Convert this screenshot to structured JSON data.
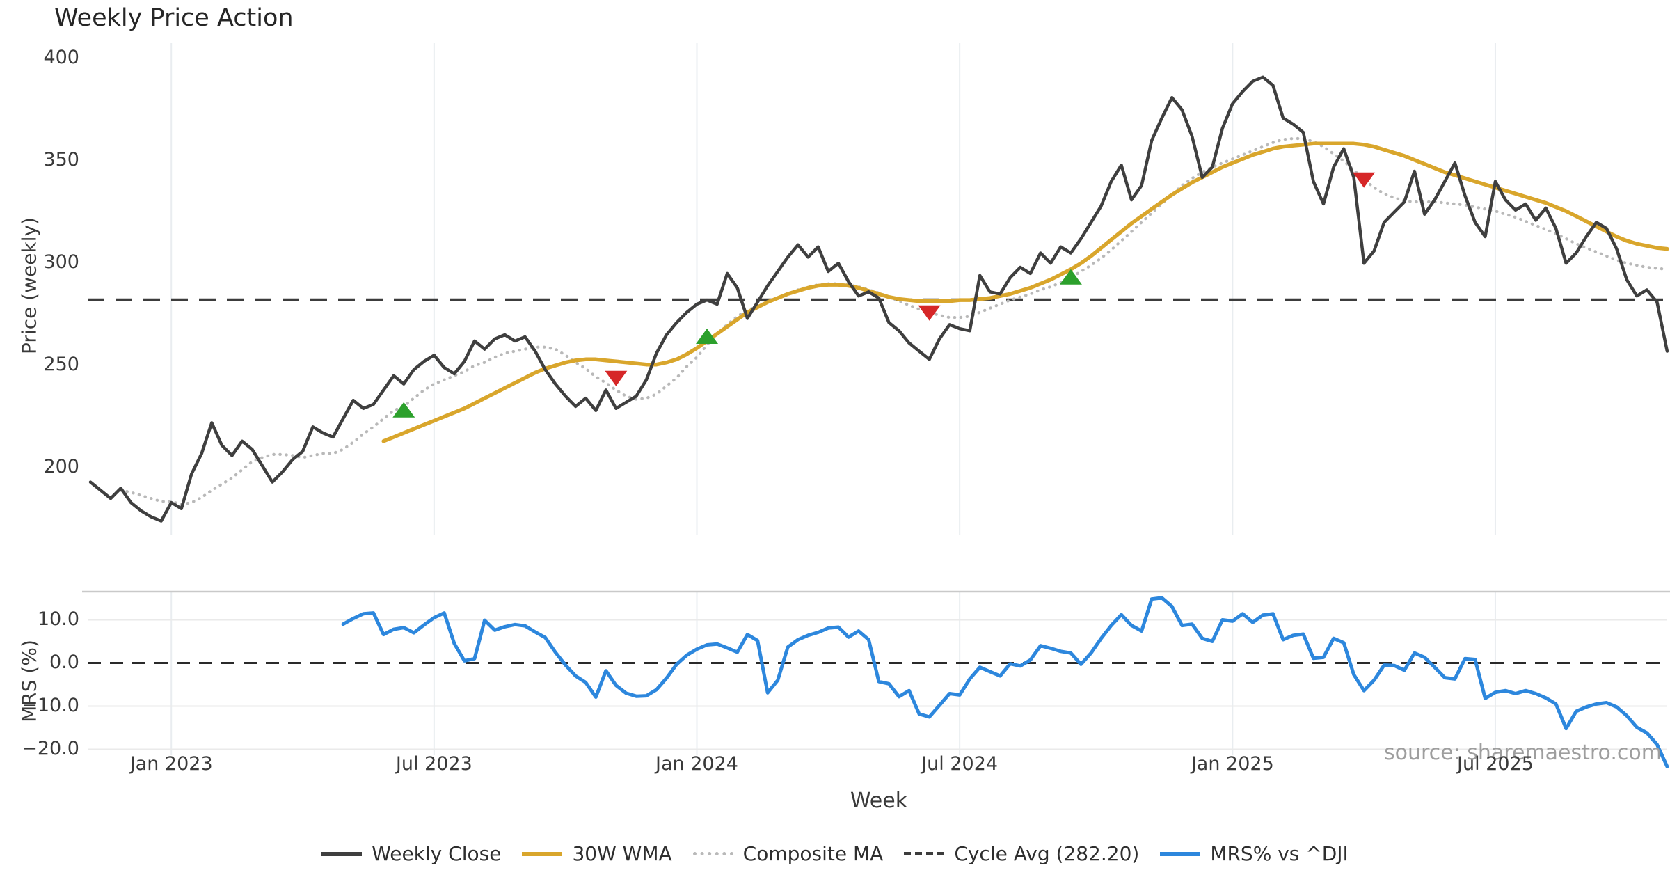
{
  "title": "Weekly Price Action",
  "source_note": "source: sharemaestro.com",
  "axes": {
    "price": {
      "ylabel": "Price (weekly)",
      "ytick_labels": [
        "400",
        "350",
        "300",
        "250",
        "200"
      ],
      "ytick_values": [
        400,
        350,
        300,
        250,
        200
      ],
      "ylim": [
        167,
        413
      ]
    },
    "mrs": {
      "ylabel": "MRS (%)",
      "ytick_labels": [
        "10.0",
        "0.0",
        "−10.0",
        "−20.0"
      ],
      "ytick_values": [
        10,
        0,
        -10,
        -20
      ],
      "ylim": [
        -25,
        16.5
      ]
    },
    "x": {
      "label": "Week",
      "tick_labels": [
        "Jan 2023",
        "Jul 2023",
        "Jan 2024",
        "Jul 2024",
        "Jan 2025",
        "Jul 2025"
      ],
      "tick_positions": [
        8,
        34,
        60,
        86,
        113,
        139
      ],
      "n_weeks": 157
    }
  },
  "colors": {
    "close": "#3f3f3f",
    "wma": "#d9a62c",
    "composite": "#b9b9b9",
    "cycle": "#3c3c3c",
    "mrs": "#2d87dd",
    "buy": "#2ca02c",
    "sell": "#d62728",
    "grid_vertical": "#e9edf0",
    "grid_horizontal": "#eaeaea",
    "spine": "#c9c9c9",
    "text": "#3a3a3a",
    "muted_text": "#9e9e9e",
    "zero_line": "#2a2a2a"
  },
  "legend": [
    {
      "label": "Weekly Close",
      "color": "#3f3f3f",
      "style": "solid"
    },
    {
      "label": "30W WMA",
      "color": "#d9a62c",
      "style": "solid"
    },
    {
      "label": "Composite MA",
      "color": "#b9b9b9",
      "style": "dotted"
    },
    {
      "label": "Cycle Avg (282.20)",
      "color": "#3c3c3c",
      "style": "dashed"
    },
    {
      "label": "MRS% vs ^DJI",
      "color": "#2d87dd",
      "style": "solid"
    }
  ],
  "chart_data": [
    {
      "panel": "price",
      "type": "line",
      "ylabel": "Price (weekly)",
      "cycle_avg": 282.2,
      "cycle_avg_label": "Cycle Avg (282.20)",
      "series": [
        {
          "name": "Weekly Close",
          "style": "solid",
          "color": "#3f3f3f",
          "width": 4.5,
          "start_index": 0,
          "values": [
            193,
            189,
            185,
            190,
            183,
            179,
            176,
            174,
            183,
            180,
            197,
            207,
            222,
            211,
            206,
            213,
            209,
            201,
            193,
            198,
            204,
            208,
            220,
            217,
            215,
            224,
            233,
            229,
            231,
            238,
            245,
            241,
            248,
            252,
            255,
            249,
            246,
            252,
            262,
            258,
            263,
            265,
            262,
            264,
            257,
            248,
            241,
            235,
            230,
            234,
            228,
            238,
            229,
            232,
            235,
            243,
            256,
            265,
            271,
            276,
            280,
            282,
            280,
            295,
            288,
            273,
            281,
            289,
            296,
            303,
            309,
            303,
            308,
            296,
            300,
            291,
            284,
            286,
            283,
            271,
            267,
            261,
            257,
            253,
            263,
            270,
            268,
            267,
            294,
            286,
            285,
            293,
            298,
            295,
            305,
            300,
            308,
            305,
            312,
            320,
            328,
            340,
            348,
            331,
            338,
            360,
            371,
            381,
            375,
            362,
            342,
            347,
            366,
            378,
            384,
            389,
            391,
            387,
            371,
            368,
            364,
            340,
            329,
            347,
            356,
            342,
            300,
            306,
            320,
            325,
            330,
            345,
            324,
            331,
            340,
            349,
            333,
            320,
            313,
            340,
            331,
            326,
            329,
            321,
            327,
            317,
            300,
            305,
            313,
            320,
            317,
            307,
            292,
            284,
            287,
            281,
            257
          ]
        },
        {
          "name": "30W WMA",
          "style": "solid",
          "color": "#d9a62c",
          "width": 5.5,
          "start_index": 29,
          "values": [
            213,
            215,
            217,
            219,
            221,
            223,
            225,
            227,
            229,
            231.5,
            234,
            236.5,
            239,
            241.5,
            244,
            246.5,
            248.5,
            250,
            251.5,
            252.5,
            253,
            253,
            252.5,
            252,
            251.5,
            251,
            250.5,
            250.5,
            251.5,
            253,
            255.5,
            258.5,
            262,
            265.5,
            269,
            272.5,
            276,
            278.5,
            281,
            283,
            285,
            286.5,
            288,
            289,
            289.5,
            289.5,
            289,
            288,
            286.5,
            285,
            283.5,
            282.5,
            282,
            281.5,
            281.5,
            281.5,
            281.5,
            282,
            282,
            282.5,
            283,
            284,
            285,
            286.5,
            288,
            290,
            292,
            294.5,
            297,
            300,
            303.5,
            307.5,
            311.5,
            315.5,
            319.5,
            323,
            326.5,
            330,
            333.5,
            336.5,
            339.5,
            342,
            344.5,
            347,
            349,
            351,
            353,
            354.5,
            356,
            357,
            357.5,
            358,
            358.5,
            358.5,
            358.5,
            358.5,
            358.5,
            358,
            357,
            355.5,
            354,
            352.5,
            350.5,
            348.5,
            346.5,
            344.5,
            343,
            341.5,
            340,
            338.5,
            337,
            335.5,
            334,
            332.5,
            331,
            329.5,
            327.5,
            325.5,
            323,
            320.5,
            318,
            315.5,
            313,
            311,
            309.5,
            308.5,
            307.5,
            307
          ]
        },
        {
          "name": "Composite MA",
          "style": "dotted",
          "color": "#b9b9b9",
          "width": 4.2,
          "start_index": 3,
          "values": [
            189,
            188,
            186.5,
            185,
            183.5,
            183.5,
            182,
            183,
            185.5,
            189,
            192,
            195,
            199,
            203,
            205,
            206.5,
            206.5,
            206,
            205,
            206,
            207,
            207,
            209,
            212.5,
            216.5,
            220,
            224,
            228,
            230,
            234,
            238,
            241,
            243,
            245,
            247,
            250,
            251.5,
            254,
            256,
            257,
            258,
            259,
            259,
            258,
            255,
            251.5,
            248.5,
            244.5,
            241.5,
            238,
            235,
            233.5,
            234,
            236,
            240,
            244,
            249.5,
            254,
            260,
            265.5,
            270,
            274,
            277,
            279,
            281,
            283,
            285,
            287,
            288.5,
            289.5,
            290,
            290,
            289.5,
            288.5,
            287,
            285.5,
            283.5,
            281.5,
            279.5,
            277.5,
            276,
            274.5,
            273.5,
            273.5,
            274,
            276,
            278,
            280,
            282,
            283.5,
            285,
            287,
            288.5,
            290.5,
            293,
            296,
            299,
            302.5,
            306.5,
            311,
            315.5,
            320,
            324.5,
            329,
            333.5,
            338,
            341.5,
            344.5,
            347,
            349,
            351,
            353,
            355,
            357,
            359,
            360.5,
            361,
            361,
            359.5,
            357,
            353.5,
            350,
            345.5,
            341,
            337,
            334,
            332,
            330.5,
            330,
            330,
            330,
            329.5,
            329,
            328.5,
            327.5,
            326.5,
            325.5,
            324,
            322.5,
            320.5,
            318.5,
            316.5,
            314.5,
            312,
            309.5,
            307.5,
            305.5,
            303.5,
            301.5,
            300,
            299,
            298,
            297.5,
            297
          ]
        }
      ],
      "signals": {
        "buy": [
          {
            "week": 31,
            "price": 228
          },
          {
            "week": 61,
            "price": 264
          },
          {
            "week": 97,
            "price": 293
          }
        ],
        "sell": [
          {
            "week": 52,
            "price": 244
          },
          {
            "week": 83,
            "price": 276
          },
          {
            "week": 126,
            "price": 341
          }
        ]
      }
    },
    {
      "panel": "mrs",
      "type": "line",
      "ylabel": "MRS (%)",
      "zero_line": 0,
      "series": [
        {
          "name": "MRS% vs ^DJI",
          "style": "solid",
          "color": "#2d87dd",
          "width": 5,
          "start_index": 25,
          "values": [
            9.0,
            10.3,
            11.4,
            11.6,
            6.6,
            7.8,
            8.2,
            7.0,
            8.8,
            10.5,
            11.6,
            4.5,
            0.5,
            1.0,
            9.9,
            7.6,
            8.4,
            8.9,
            8.6,
            7.2,
            5.9,
            2.5,
            -0.5,
            -3.0,
            -4.5,
            -7.9,
            -1.8,
            -5.2,
            -7.0,
            -7.7,
            -7.6,
            -6.2,
            -3.5,
            -0.3,
            1.8,
            3.2,
            4.2,
            4.4,
            3.5,
            2.5,
            6.6,
            5.2,
            -6.9,
            -4.0,
            3.7,
            5.4,
            6.4,
            7.1,
            8.1,
            8.3,
            6.0,
            7.4,
            5.4,
            -4.3,
            -4.8,
            -7.8,
            -6.4,
            -11.8,
            -12.5,
            -9.8,
            -7.1,
            -7.4,
            -3.7,
            -1.0,
            -2.0,
            -3.0,
            -0.2,
            -0.7,
            0.7,
            4.0,
            3.4,
            2.7,
            2.3,
            -0.3,
            2.3,
            5.7,
            8.7,
            11.2,
            8.7,
            7.4,
            14.8,
            15.1,
            13.1,
            8.7,
            9.0,
            5.7,
            5.0,
            10.0,
            9.7,
            11.4,
            9.4,
            11.1,
            11.4,
            5.4,
            6.4,
            6.7,
            1.1,
            1.3,
            5.7,
            4.7,
            -2.7,
            -6.4,
            -4.0,
            -0.5,
            -0.6,
            -1.7,
            2.3,
            1.3,
            -1.0,
            -3.4,
            -3.7,
            1.0,
            0.8,
            -8.2,
            -6.8,
            -6.4,
            -7.1,
            -6.4,
            -7.1,
            -8.1,
            -9.5,
            -15.2,
            -11.2,
            -10.2,
            -9.5,
            -9.2,
            -10.2,
            -12.2,
            -14.9,
            -16.2,
            -18.9,
            -24.0
          ]
        }
      ]
    }
  ]
}
